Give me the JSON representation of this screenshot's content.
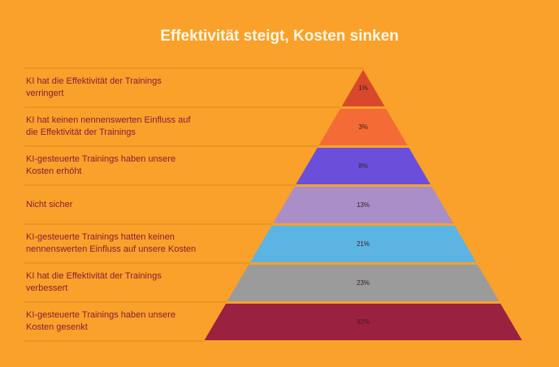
{
  "chart_data": {
    "type": "pyramid",
    "title": "Effektivität steigt, Kosten sinken",
    "categories": [
      "KI hat die Effektivität der Trainings verringert",
      "KI hat keinen nennenswerten Einfluss auf die Effektivität der Trainings",
      "KI-gesteuerte Trainings haben unsere Kosten erhöht",
      "Nicht sicher",
      "KI-gesteuerte Trainings hatten keinen nennenswerten Einfluss auf unsere Kosten",
      "KI hat die Effektivität der Trainings verbessert",
      "KI-gesteuerte Trainings haben unsere Kosten gesenkt"
    ],
    "values": [
      1,
      3,
      8,
      13,
      21,
      23,
      32
    ],
    "value_labels": [
      "1%",
      "3%",
      "8%",
      "13%",
      "21%",
      "23%",
      "32%"
    ],
    "colors": [
      "#d9482b",
      "#f46b36",
      "#6a4fda",
      "#a98ec8",
      "#5cb4e2",
      "#9b9b9b",
      "#9a2140"
    ]
  }
}
